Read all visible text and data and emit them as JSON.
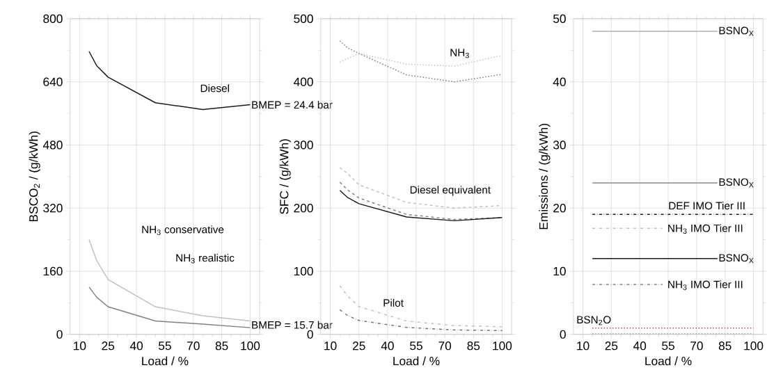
{
  "chart_data": [
    {
      "type": "line",
      "xlabel": "Load / %",
      "ylabel": "BSCO$_{2}$ / (g/kWh)",
      "xlim": [
        5,
        105
      ],
      "ylim": [
        0,
        800
      ],
      "xticks": [
        10,
        25,
        40,
        55,
        70,
        85,
        100
      ],
      "yticks": [
        0,
        160,
        320,
        480,
        640,
        800
      ],
      "grid": true,
      "series": [
        {
          "color": "#1a1a1a",
          "line_style": "solid",
          "x": [
            15,
            19,
            25,
            50,
            75,
            100
          ],
          "values": [
            717,
            681,
            652,
            587,
            570,
            582
          ]
        },
        {
          "color": "#c0c0c0",
          "line_style": "solid",
          "x": [
            15,
            19,
            25,
            50,
            75,
            100
          ],
          "values": [
            240,
            187,
            139,
            70,
            47,
            34
          ]
        },
        {
          "color": "#808080",
          "line_style": "solid",
          "x": [
            15,
            19,
            25,
            50,
            75,
            100
          ],
          "values": [
            120,
            94,
            70,
            34,
            26,
            17
          ]
        }
      ],
      "annotations": [
        "Diesel",
        "NH$_{3}$ conservative",
        "NH$_{3}$ realistic",
        "BMEP = 24.4 bar",
        "BMEP = 15.7 bar"
      ]
    },
    {
      "type": "line",
      "xlabel": "Load / %",
      "ylabel": "SFC / (g/kWh)",
      "xlim": [
        5,
        105
      ],
      "ylim": [
        0,
        500
      ],
      "xticks": [
        10,
        25,
        40,
        55,
        70,
        85,
        100
      ],
      "yticks": [
        0,
        100,
        200,
        300,
        400,
        500
      ],
      "grid": true,
      "series": [
        {
          "color": "#707070",
          "line_style": "dotted",
          "x": [
            15,
            19,
            25,
            50,
            75,
            100
          ],
          "values": [
            465,
            454,
            445,
            411,
            400,
            412
          ]
        },
        {
          "color": "#c0c0c0",
          "line_style": "dotted",
          "x": [
            15,
            19,
            25,
            50,
            75,
            100
          ],
          "values": [
            431,
            437,
            445,
            428,
            425,
            442
          ]
        },
        {
          "color": "#c0c0c0",
          "line_style": "dashed",
          "x": [
            15,
            19,
            25,
            50,
            75,
            100
          ],
          "values": [
            264,
            255,
            237,
            209,
            200,
            204
          ]
        },
        {
          "color": "#808080",
          "line_style": "dashed",
          "x": [
            15,
            19,
            25,
            50,
            75,
            100
          ],
          "values": [
            241,
            229,
            216,
            190,
            182,
            185
          ]
        },
        {
          "color": "#1a1a1a",
          "line_style": "solid",
          "x": [
            15,
            19,
            25,
            50,
            75,
            100
          ],
          "values": [
            228,
            217,
            207,
            186,
            180,
            185
          ]
        },
        {
          "color": "#c0c0c0",
          "line_style": "dashdot",
          "x": [
            15,
            19,
            25,
            50,
            75,
            100
          ],
          "values": [
            77,
            61,
            44,
            21,
            14,
            12
          ]
        },
        {
          "color": "#707070",
          "line_style": "dashdot",
          "x": [
            15,
            19,
            25,
            50,
            75,
            100
          ],
          "values": [
            39,
            30,
            22,
            11,
            7,
            6
          ]
        }
      ],
      "annotations": [
        "NH$_{3}$",
        "Diesel equivalent",
        "Pilot"
      ]
    },
    {
      "type": "line",
      "xlabel": "Load / %",
      "ylabel": "Emissions / (g/kWh)",
      "xlim": [
        5,
        105
      ],
      "ylim": [
        0,
        50
      ],
      "xticks": [
        10,
        25,
        40,
        55,
        70,
        85,
        100
      ],
      "yticks": [
        0,
        10,
        20,
        30,
        40,
        50
      ],
      "grid": true,
      "series": [
        {
          "name": "BSNO$_{X}$",
          "color": "#b0b0b0",
          "line_style": "solid",
          "x": [
            15,
            81
          ],
          "values": [
            48,
            48
          ]
        },
        {
          "name": "BSNO$_{X}$",
          "color": "#888888",
          "line_style": "solid",
          "x": [
            15,
            81
          ],
          "values": [
            24,
            24
          ]
        },
        {
          "name": "BSNO$_{X}$",
          "color": "#1a1a1a",
          "line_style": "solid",
          "x": [
            15,
            81
          ],
          "values": [
            12,
            12
          ]
        },
        {
          "color": "#1a1a1a",
          "line_style": "dashdot",
          "x": [
            15,
            100
          ],
          "values": [
            19,
            19
          ]
        },
        {
          "color": "#c0c0c0",
          "line_style": "dashdot",
          "x": [
            15,
            52
          ],
          "values": [
            16.8,
            16.8
          ]
        },
        {
          "color": "#808080",
          "line_style": "dashdot",
          "x": [
            15,
            52
          ],
          "values": [
            7.9,
            7.9
          ]
        },
        {
          "color": "#e03030",
          "line_style": "dotted",
          "x": [
            15,
            100
          ],
          "values": [
            1.0,
            1.0
          ]
        },
        {
          "color": "#a0a0a0",
          "line_style": "dotted",
          "x": [
            15,
            100
          ],
          "values": [
            0.1,
            0.1
          ]
        }
      ],
      "annotations": [
        "DEF IMO Tier III",
        "NH$_{3}$ IMO Tier III",
        "NH$_{3}$ IMO Tier III",
        "BSN$_{2}$O"
      ]
    }
  ]
}
